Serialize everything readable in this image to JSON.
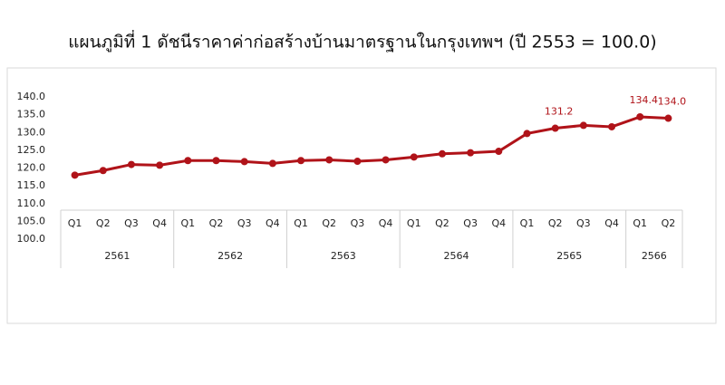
{
  "chart_data": {
    "type": "line",
    "title": "แผนภูมิที่ 1 ดัชนีราคาค่าก่อสร้างบ้านมาตรฐานในกรุงเทพฯ (ปี 2553 = 100.0)",
    "groups": [
      {
        "label": "2561",
        "categories": [
          "Q1",
          "Q2",
          "Q3",
          "Q4"
        ]
      },
      {
        "label": "2562",
        "categories": [
          "Q1",
          "Q2",
          "Q3",
          "Q4"
        ]
      },
      {
        "label": "2563",
        "categories": [
          "Q1",
          "Q2",
          "Q3",
          "Q4"
        ]
      },
      {
        "label": "2564",
        "categories": [
          "Q1",
          "Q2",
          "Q3",
          "Q4"
        ]
      },
      {
        "label": "2565",
        "categories": [
          "Q1",
          "Q2",
          "Q3",
          "Q4"
        ]
      },
      {
        "label": "2566",
        "categories": [
          "Q1",
          "Q2"
        ]
      }
    ],
    "values": [
      118.0,
      119.3,
      121.0,
      120.8,
      122.1,
      122.1,
      121.8,
      121.3,
      122.1,
      122.3,
      121.9,
      122.3,
      123.1,
      124.0,
      124.3,
      124.7,
      129.7,
      131.2,
      132.0,
      131.6,
      134.4,
      134.0
    ],
    "value_labels": [
      null,
      null,
      null,
      null,
      null,
      null,
      null,
      null,
      null,
      null,
      null,
      null,
      null,
      null,
      null,
      null,
      null,
      "131.2",
      null,
      null,
      "134.4",
      "134.0"
    ],
    "color": "#b01319",
    "ylim": [
      100,
      140
    ],
    "yticks": [
      {
        "value": 100,
        "label": "100.0"
      },
      {
        "value": 105,
        "label": "105.0"
      },
      {
        "value": 110,
        "label": "110.0"
      },
      {
        "value": 115,
        "label": "115.0"
      },
      {
        "value": 120,
        "label": "120.0"
      },
      {
        "value": 125,
        "label": "125.0"
      },
      {
        "value": 130,
        "label": "130.0"
      },
      {
        "value": 135,
        "label": "135.0"
      },
      {
        "value": 140,
        "label": "140.0"
      }
    ],
    "grid": false
  }
}
